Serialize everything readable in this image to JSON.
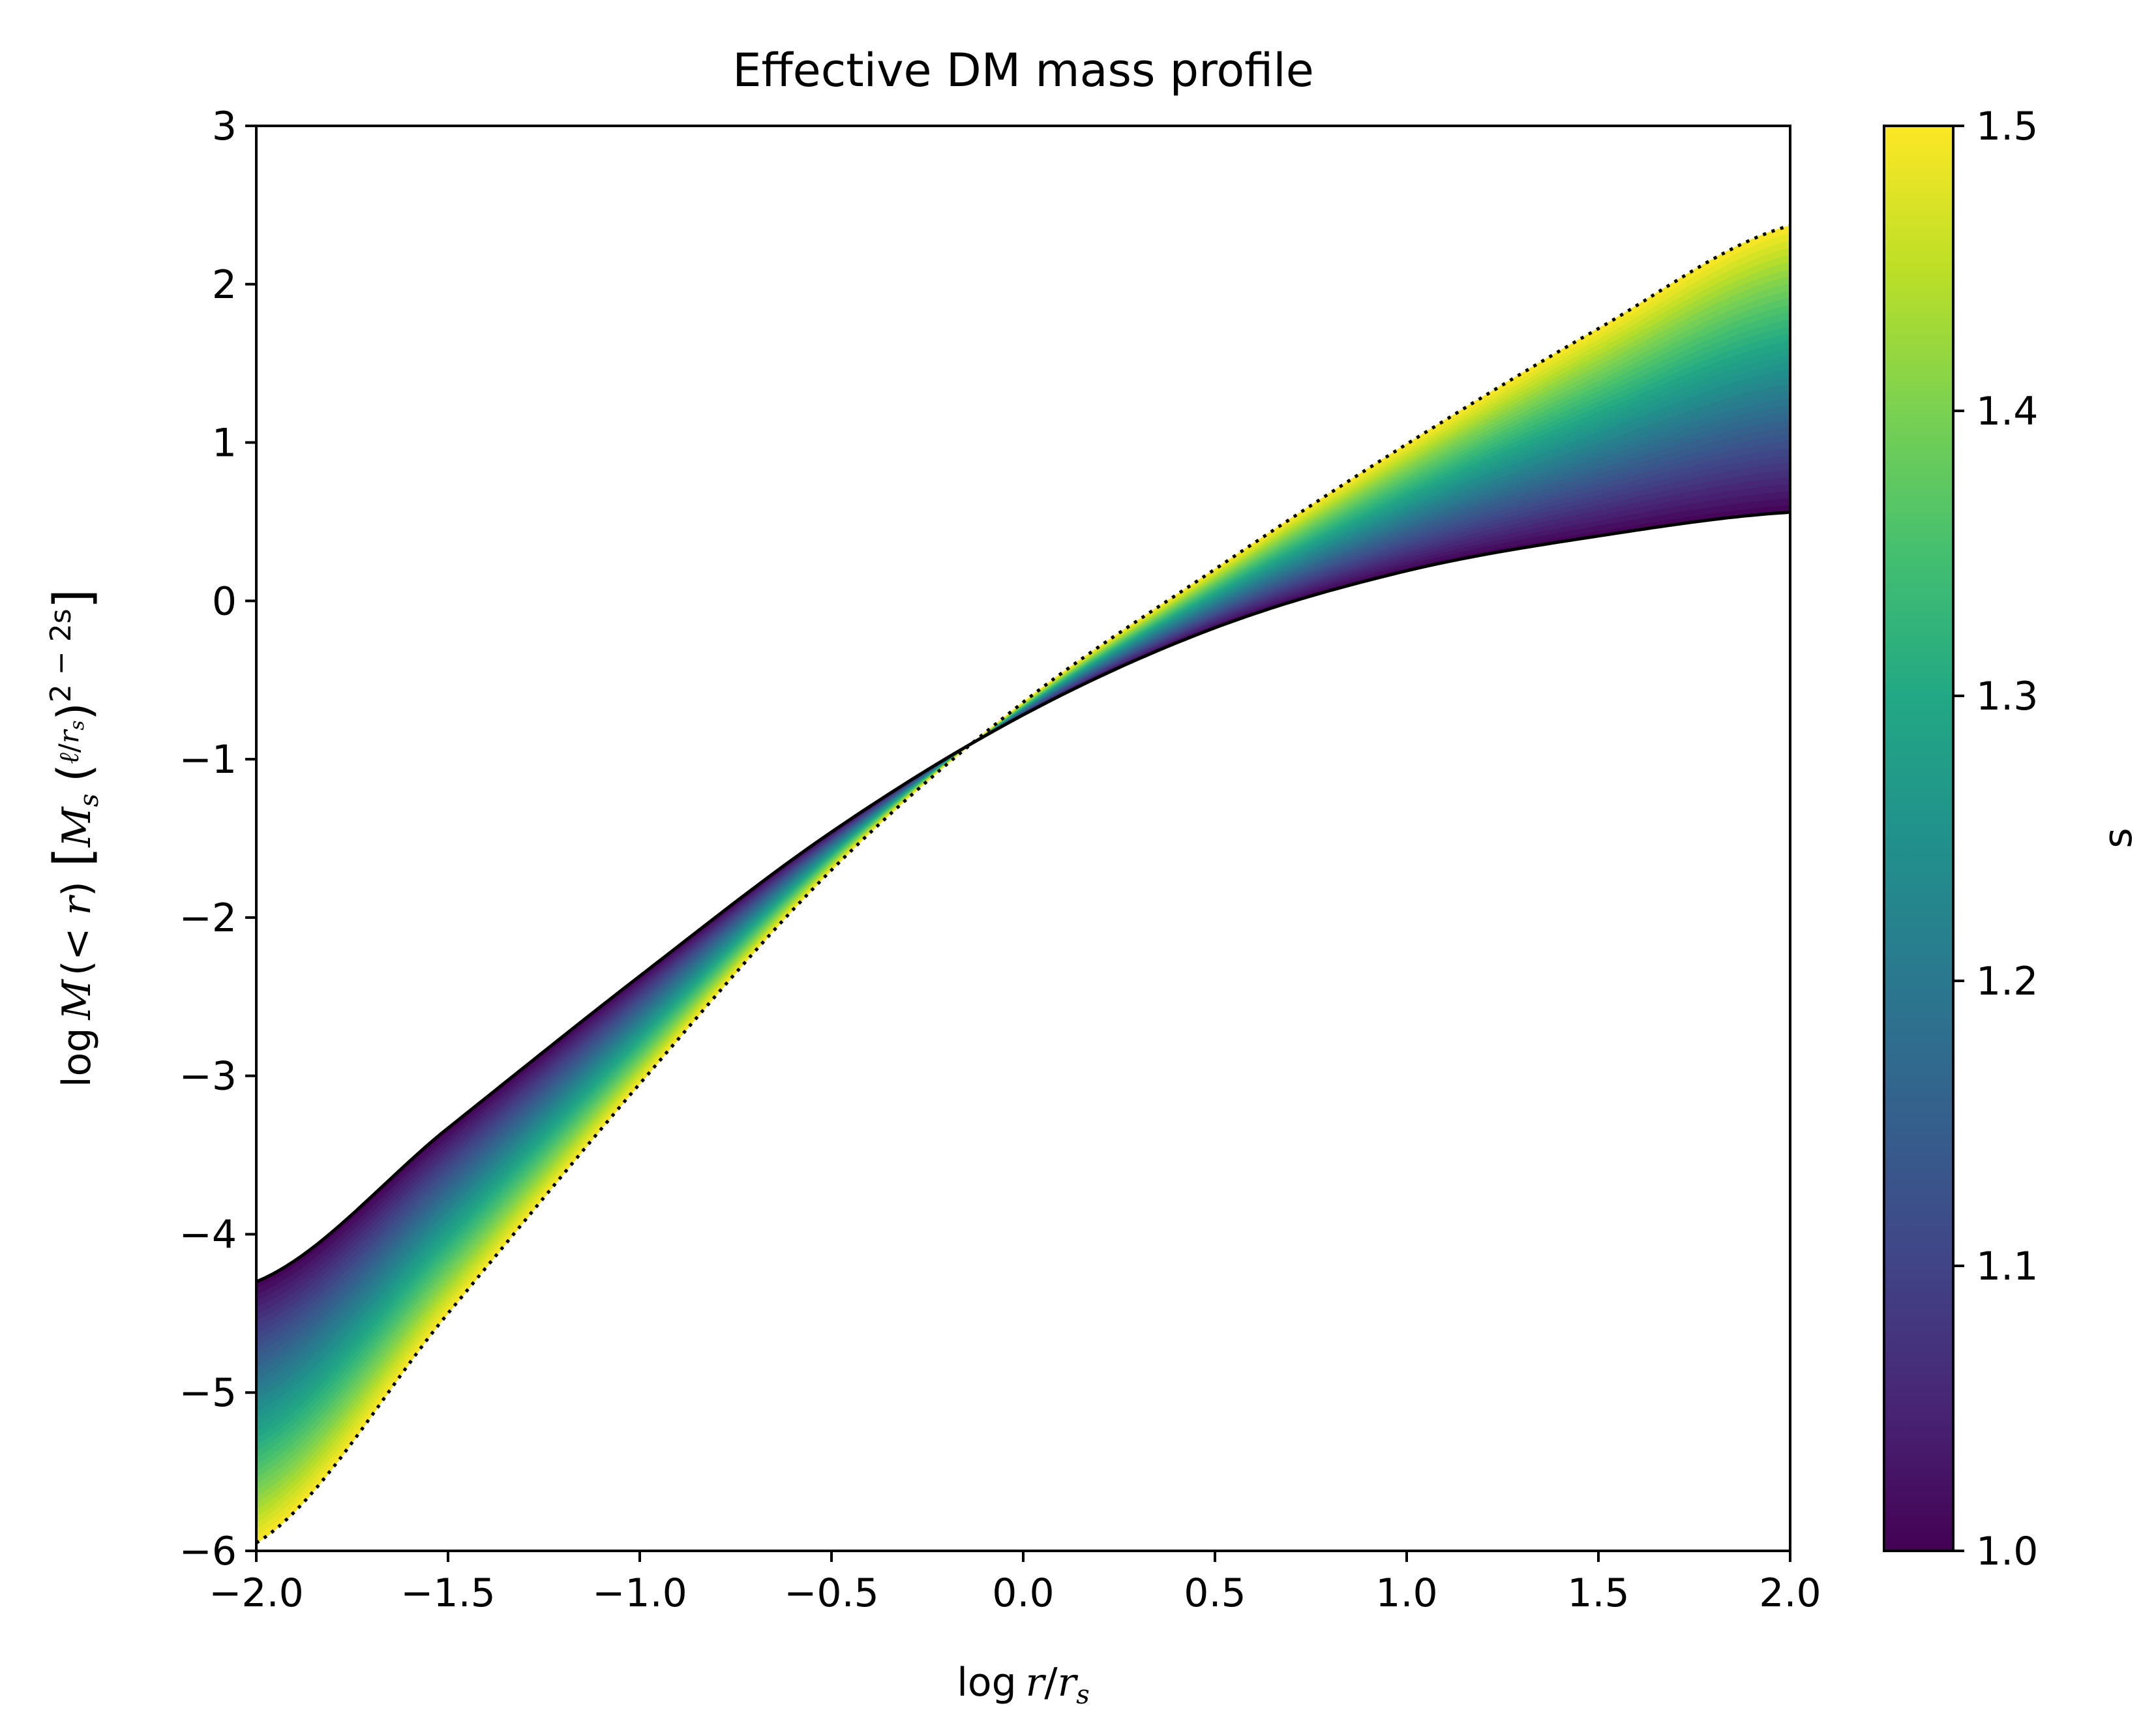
{
  "chart_data": {
    "type": "area",
    "title": "Effective DM mass profile",
    "xlabel_parts": [
      "log",
      "r",
      "/",
      "r",
      "s"
    ],
    "ylabel": "log M(< r) [M_s (ℓ/r_s)^(2−2s)]",
    "ylabel_parts": {
      "log": "log",
      "M": "M",
      "lt": "(< ",
      "r": "r",
      "close": ")",
      "Ms": "M",
      "s_sub": "s",
      "ell": "ℓ",
      "rs": "r",
      "rs_sub": "s",
      "exp": "2 − 2s"
    },
    "xlim": [
      -2.0,
      2.0
    ],
    "ylim": [
      -6,
      3
    ],
    "xticks": [
      "−2.0",
      "−1.5",
      "−1.0",
      "−0.5",
      "0.0",
      "0.5",
      "1.0",
      "1.5",
      "2.0"
    ],
    "xtick_values": [
      -2.0,
      -1.5,
      -1.0,
      -0.5,
      0.0,
      0.5,
      1.0,
      1.5,
      2.0
    ],
    "yticks": [
      "−6",
      "−5",
      "−4",
      "−3",
      "−2",
      "−1",
      "0",
      "1",
      "2",
      "3"
    ],
    "ytick_values": [
      -6,
      -5,
      -4,
      -3,
      -2,
      -1,
      0,
      1,
      2,
      3
    ],
    "series": [
      {
        "name": "s = 1.0 (solid)",
        "style": "solid",
        "x": [
          -2.0,
          -1.5,
          -1.0,
          -0.5,
          0.0,
          0.5,
          1.0,
          1.5,
          2.0
        ],
        "y": [
          -4.3,
          -3.33,
          -2.37,
          -1.46,
          -0.72,
          -0.17,
          0.19,
          0.41,
          0.56
        ]
      },
      {
        "name": "s = 1.5 (dotted)",
        "style": "dotted",
        "x": [
          -2.0,
          -1.5,
          -1.0,
          -0.5,
          0.0,
          0.5,
          1.0,
          1.5,
          2.0
        ],
        "y": [
          -5.95,
          -4.5,
          -3.05,
          -1.7,
          -0.64,
          0.2,
          0.99,
          1.72,
          2.37
        ]
      }
    ],
    "fill": {
      "s_min": 1.0,
      "s_max": 1.5,
      "colormap": "viridis"
    },
    "colorbar": {
      "label": "s",
      "range": [
        1.0,
        1.5
      ],
      "ticks": [
        "1.0",
        "1.1",
        "1.2",
        "1.3",
        "1.4",
        "1.5"
      ],
      "tick_values": [
        1.0,
        1.1,
        1.2,
        1.3,
        1.4,
        1.5
      ]
    }
  },
  "colors": {
    "viridis": [
      "#440154",
      "#482475",
      "#414487",
      "#355f8d",
      "#2a788e",
      "#21918c",
      "#22a884",
      "#44bf70",
      "#7ad151",
      "#bddf26",
      "#fde725"
    ],
    "axis": "#000000",
    "background": "#ffffff"
  }
}
